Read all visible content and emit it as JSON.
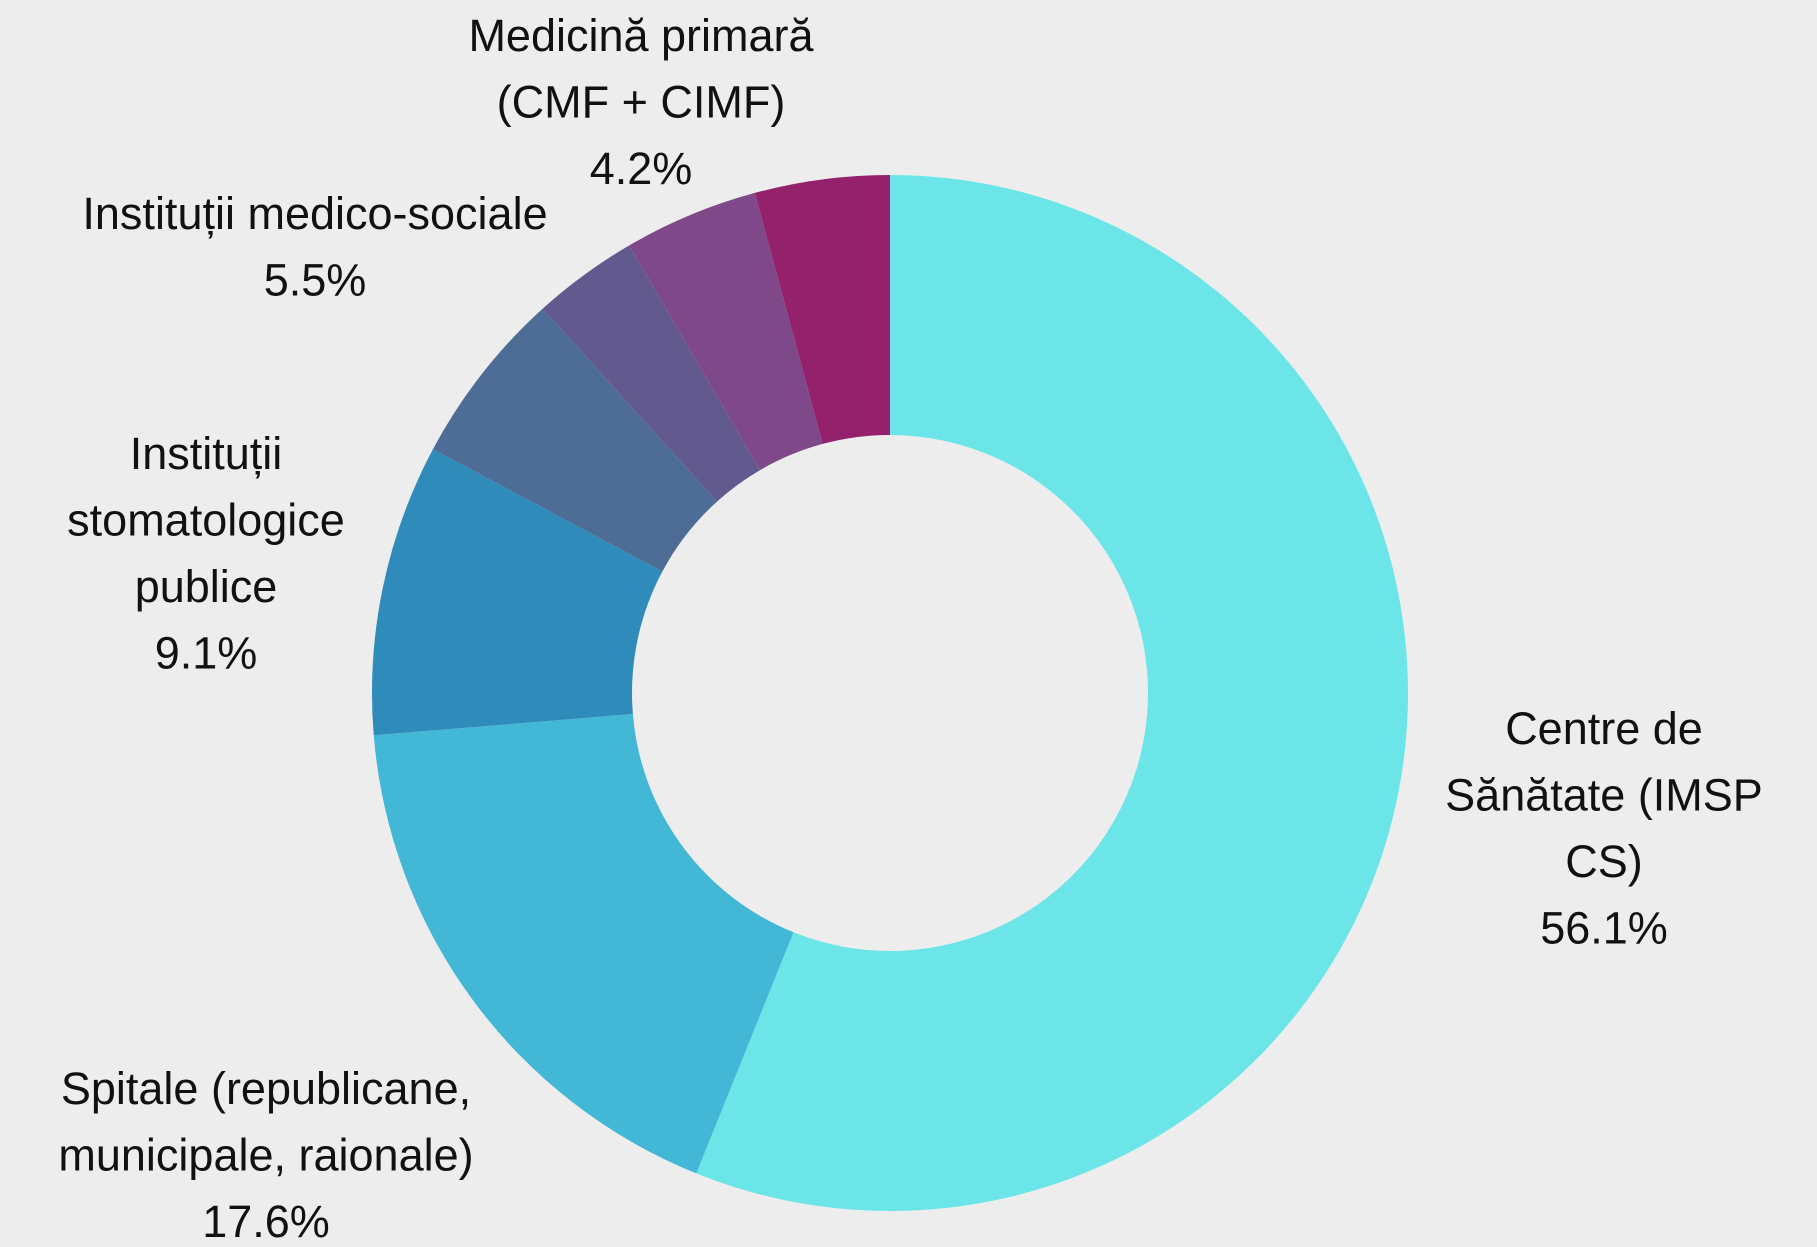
{
  "chart_data": {
    "type": "donut",
    "categories": [
      "Centre de\nSănătate (IMSP\nCS)",
      "Spitale (republicane,\nmunicipale, raionale)",
      "Instituții\nstomatologice\npublice",
      "Instituții medico-sociale",
      null,
      null,
      "Medicină primară\n(CMF + CIMF)"
    ],
    "values": [
      56.1,
      17.6,
      9.1,
      5.5,
      3.3,
      4.2,
      4.2
    ],
    "value_labels": [
      "56.1%",
      "17.6%",
      "9.1%",
      "5.5%",
      null,
      null,
      "4.2%"
    ],
    "colors": [
      "#6ce5e8",
      "#42b7d6",
      "#2e8bba",
      "#4e6d96",
      "#625a8e",
      "#7f4889",
      "#94216c"
    ]
  }
}
